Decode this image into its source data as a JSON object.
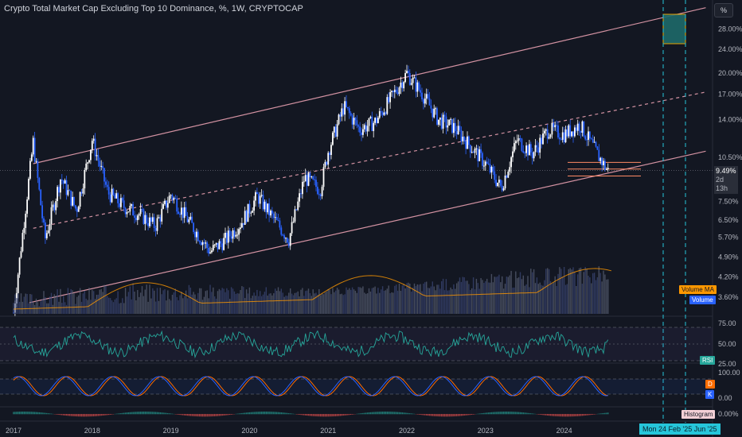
{
  "header": {
    "title": "Crypto Total Market Cap Excluding Top 10 Dominance, %, 1W, CRYPTOCAP",
    "scale_button": "%"
  },
  "price_axis": {
    "ticks": [
      "28.00%",
      "24.00%",
      "20.00%",
      "17.00%",
      "14.00%",
      "10.50%",
      "7.50%",
      "6.50%",
      "5.70%",
      "4.90%",
      "4.20%",
      "3.60%"
    ],
    "current_value": "9.49%",
    "countdown": "2d 13h"
  },
  "volume": {
    "ma_label": "Volume MA",
    "label": "Volume"
  },
  "rsi": {
    "label": "RSI",
    "ticks": [
      "75.00",
      "50.00",
      "25.00"
    ]
  },
  "stoch": {
    "ticks": [
      "100.00",
      "0.00"
    ],
    "d_label": "D",
    "k_label": "K"
  },
  "macd": {
    "label": "Histogram",
    "tick": "0.00%"
  },
  "time_axis": {
    "labels": [
      "2017",
      "2018",
      "2019",
      "2020",
      "2021",
      "2022",
      "2023",
      "2024"
    ],
    "cursor_dates": "Mon 24 Feb '25   Jun '25"
  },
  "colors": {
    "background": "#131722",
    "candle_up": "#ffffff",
    "candle_down": "#2962ff",
    "channel": "#e8a0b0",
    "rsi_line": "#26a69a",
    "stoch_k": "#2962ff",
    "stoch_d": "#ff6d00",
    "cursor": "#26c6da",
    "volume_ma": "#ff9800"
  },
  "chart_data": {
    "type": "candlestick",
    "unit": "%",
    "x": [
      2017.0,
      2017.25,
      2017.4,
      2017.6,
      2017.8,
      2018.0,
      2018.2,
      2018.4,
      2018.6,
      2018.8,
      2019.0,
      2019.2,
      2019.5,
      2019.7,
      2019.9,
      2020.1,
      2020.3,
      2020.5,
      2020.7,
      2020.9,
      2021.0,
      2021.2,
      2021.4,
      2021.6,
      2021.8,
      2022.0,
      2022.2,
      2022.4,
      2022.6,
      2022.8,
      2023.0,
      2023.2,
      2023.4,
      2023.6,
      2023.8,
      2024.0,
      2024.2,
      2024.4,
      2024.55
    ],
    "y": [
      3.2,
      11.8,
      5.6,
      9.0,
      7.0,
      12.0,
      8.0,
      7.2,
      6.8,
      6.2,
      7.9,
      6.6,
      5.1,
      5.6,
      6.4,
      7.8,
      6.6,
      5.6,
      9.0,
      8.2,
      11.0,
      15.5,
      13.0,
      13.8,
      16.5,
      20.0,
      17.0,
      14.0,
      13.2,
      11.5,
      10.0,
      8.3,
      12.0,
      10.8,
      13.0,
      12.5,
      13.5,
      11.0,
      9.49
    ],
    "volume_ma_label": "Volume MA",
    "indicators": [
      "Volume",
      "RSI",
      "Stoch RSI",
      "MACD Histogram"
    ],
    "y_ticks": [
      "28.00%",
      "24.00%",
      "20.00%",
      "17.00%",
      "14.00%",
      "10.50%",
      "7.50%",
      "6.50%",
      "5.70%",
      "4.90%",
      "4.20%",
      "3.60%"
    ],
    "x_ticks": [
      "2017",
      "2018",
      "2019",
      "2020",
      "2021",
      "2022",
      "2023",
      "2024"
    ],
    "scale": "log",
    "grid": false
  }
}
